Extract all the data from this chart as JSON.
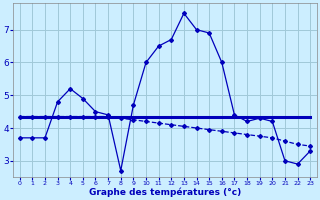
{
  "xlabel": "Graphe des températures (°c)",
  "background_color": "#cceeff",
  "grid_color": "#a0c8d8",
  "line_color": "#0000bb",
  "xlim": [
    -0.5,
    23.5
  ],
  "ylim": [
    2.5,
    7.8
  ],
  "yticks": [
    3,
    4,
    5,
    6,
    7
  ],
  "xticks": [
    0,
    1,
    2,
    3,
    4,
    5,
    6,
    7,
    8,
    9,
    10,
    11,
    12,
    13,
    14,
    15,
    16,
    17,
    18,
    19,
    20,
    21,
    22,
    23
  ],
  "line1_x": [
    0,
    1,
    2,
    3,
    4,
    5,
    6,
    7,
    8,
    9,
    10,
    11,
    12,
    13,
    14,
    15,
    16,
    17,
    18,
    19,
    20,
    21,
    22,
    23
  ],
  "line1_y": [
    3.7,
    3.7,
    3.7,
    4.8,
    5.2,
    4.9,
    4.5,
    4.4,
    2.7,
    4.7,
    6.0,
    6.5,
    6.7,
    7.5,
    7.0,
    6.9,
    6.0,
    4.4,
    4.2,
    4.3,
    4.2,
    3.0,
    2.9,
    3.3
  ],
  "line2_x": [
    0,
    23
  ],
  "line2_y": [
    4.35,
    4.35
  ],
  "line3_x": [
    0,
    1,
    2,
    3,
    4,
    5,
    6,
    7,
    8,
    9,
    10,
    11,
    12,
    13,
    14,
    15,
    16,
    17,
    18,
    19,
    20,
    21,
    22,
    23
  ],
  "line3_y": [
    4.35,
    4.35,
    4.35,
    4.35,
    4.35,
    4.35,
    4.35,
    4.35,
    4.3,
    4.25,
    4.2,
    4.15,
    4.1,
    4.05,
    4.0,
    3.95,
    3.9,
    3.85,
    3.8,
    3.75,
    3.7,
    3.6,
    3.5,
    3.45
  ]
}
